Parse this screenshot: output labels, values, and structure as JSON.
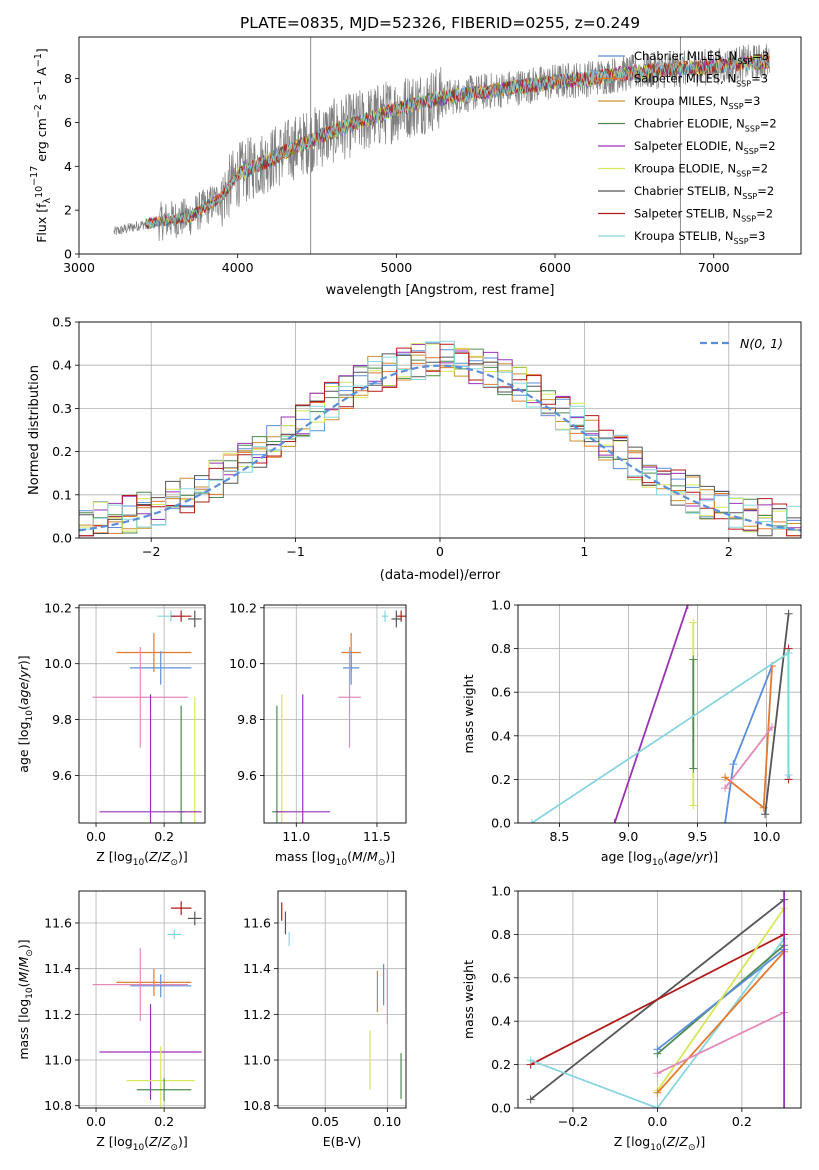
{
  "chart_data": [
    {
      "type": "line",
      "title": "PLATE=0835, MJD=52326, FIBERID=0255, z=0.249",
      "xlabel": "wavelength [Angstrom, rest frame]",
      "ylabel": "Flux [f_λ 10^-17 erg cm^-2 s^-1 A^-1]",
      "xlim": [
        3000,
        7550
      ],
      "ylim": [
        0,
        9.9
      ],
      "xticks": [
        3000,
        4000,
        5000,
        6000,
        7000
      ],
      "yticks": [
        0,
        2,
        4,
        6,
        8
      ],
      "legend_position": "right",
      "series": [
        {
          "name": "Chabrier MILES, N_SSP=3",
          "color": "#5b8fd9"
        },
        {
          "name": "Salpeter MILES, N_SSP=3",
          "color": "#e17a2c"
        },
        {
          "name": "Kroupa MILES, N_SSP=3",
          "color": "#c8912f"
        },
        {
          "name": "Chabrier ELODIE, N_SSP=2",
          "color": "#4f8a4f"
        },
        {
          "name": "Salpeter ELODIE, N_SSP=2",
          "color": "#9a32b8"
        },
        {
          "name": "Kroupa ELODIE, N_SSP=2",
          "color": "#d8e65a"
        },
        {
          "name": "Chabrier STELIB, N_SSP=2",
          "color": "#555555"
        },
        {
          "name": "Salpeter STELIB, N_SSP=2",
          "color": "#b01b1b"
        },
        {
          "name": "Kroupa STELIB, N_SSP=3",
          "color": "#88d5df"
        }
      ],
      "data_color": "#808080",
      "continuum_x": [
        3220,
        3400,
        3520,
        3700,
        3900,
        4000,
        4200,
        4400,
        4600,
        4800,
        5000,
        5200,
        5400,
        5600,
        5800,
        6000,
        6200,
        6400,
        6600,
        6800,
        7000,
        7200,
        7350
      ],
      "continuum_y": [
        1.0,
        1.35,
        1.5,
        1.7,
        2.6,
        3.6,
        4.3,
        5.0,
        5.6,
        6.1,
        6.6,
        7.0,
        7.25,
        7.45,
        7.65,
        7.85,
        8.0,
        8.2,
        8.35,
        8.45,
        8.55,
        8.7,
        8.8
      ],
      "spikes_x": [
        4460,
        6790
      ],
      "grid": false
    },
    {
      "type": "histogram",
      "xlabel": "(data-model)/error",
      "ylabel": "Normed distribution",
      "xlim": [
        -2.5,
        2.5
      ],
      "ylim": [
        0,
        0.5
      ],
      "xticks": [
        -2,
        -1,
        0,
        1,
        2
      ],
      "yticks": [
        0.0,
        0.1,
        0.2,
        0.3,
        0.4,
        0.5
      ],
      "reference": {
        "name": "N(0, 1)",
        "color": "#5b8fd9",
        "style": "dashed"
      },
      "legend_position": "top-right",
      "grid": true
    },
    {
      "type": "scatter",
      "xlabel": "Z [log10(Z/Z_sun)]",
      "ylabel": "age [log10(age/yr)]",
      "xlim": [
        -0.05,
        0.32
      ],
      "ylim": [
        9.43,
        10.21
      ],
      "xticks": [
        0.0,
        0.2
      ],
      "yticks": [
        9.6,
        9.8,
        10.0,
        10.2
      ],
      "grid": true,
      "points": [
        {
          "c": "#88d5df",
          "x": 0.22,
          "xe": 0.04,
          "y": 10.17,
          "ye": 0.02
        },
        {
          "c": "#b01b1b",
          "x": 0.25,
          "xe": 0.03,
          "y": 10.17,
          "ye": 0.02
        },
        {
          "c": "#555555",
          "x": 0.29,
          "xe": 0.02,
          "y": 10.16,
          "ye": 0.03
        },
        {
          "c": "#e17a2c",
          "x": 0.17,
          "xe": 0.11,
          "y": 10.04,
          "ye": 0.07
        },
        {
          "c": "#5b8fd9",
          "x": 0.19,
          "xe": 0.09,
          "y": 9.985,
          "ye": 0.06
        },
        {
          "c": "#e48ab9",
          "x": 0.13,
          "xe": 0.14,
          "y": 9.88,
          "ye": 0.18
        },
        {
          "c": "#4f8a4f",
          "x": 0.25,
          "xe": 0.01,
          "y": 9.47,
          "ye": 0.38
        },
        {
          "c": "#d8e65a",
          "x": 0.29,
          "xe": 0.02,
          "y": 9.47,
          "ye": 0.41
        },
        {
          "c": "#9a32b8",
          "x": 0.16,
          "xe": 0.15,
          "y": 9.47,
          "ye": 0.42
        }
      ]
    },
    {
      "type": "scatter",
      "xlabel": "mass [log10(M/M_sun)]",
      "xlim": [
        10.8,
        11.68
      ],
      "ylim": [
        9.43,
        10.21
      ],
      "xticks": [
        11.0,
        11.5
      ],
      "yticks": [
        9.6,
        9.8,
        10.0,
        10.2
      ],
      "grid": true,
      "points": [
        {
          "c": "#88d5df",
          "x": 11.55,
          "xe": 0.02,
          "y": 10.17,
          "ye": 0.02
        },
        {
          "c": "#b01b1b",
          "x": 11.65,
          "xe": 0.03,
          "y": 10.17,
          "ye": 0.02
        },
        {
          "c": "#555555",
          "x": 11.62,
          "xe": 0.03,
          "y": 10.16,
          "ye": 0.03
        },
        {
          "c": "#e17a2c",
          "x": 11.34,
          "xe": 0.06,
          "y": 10.04,
          "ye": 0.07
        },
        {
          "c": "#5b8fd9",
          "x": 11.34,
          "xe": 0.05,
          "y": 9.985,
          "ye": 0.06
        },
        {
          "c": "#e48ab9",
          "x": 11.33,
          "xe": 0.07,
          "y": 9.88,
          "ye": 0.18
        },
        {
          "c": "#4f8a4f",
          "x": 10.88,
          "xe": 0.03,
          "y": 9.47,
          "ye": 0.38
        },
        {
          "c": "#d8e65a",
          "x": 10.91,
          "xe": 0.02,
          "y": 9.47,
          "ye": 0.42
        },
        {
          "c": "#9a32b8",
          "x": 11.04,
          "xe": 0.17,
          "y": 9.47,
          "ye": 0.42
        }
      ]
    },
    {
      "type": "line",
      "xlabel": "age [log10(age/yr)]",
      "ylabel": "mass weight",
      "xlim": [
        8.2,
        10.25
      ],
      "ylim": [
        0,
        1
      ],
      "xticks": [
        8.5,
        9.0,
        9.5,
        10.0
      ],
      "yticks": [
        0.0,
        0.2,
        0.4,
        0.6,
        0.8,
        1.0
      ],
      "grid": true,
      "series": [
        {
          "c": "#5b8fd9",
          "x": [
            9.7,
            9.76,
            10.04
          ],
          "y": [
            0.0,
            0.27,
            0.72
          ]
        },
        {
          "c": "#e17a2c",
          "x": [
            9.7,
            9.98,
            10.04
          ],
          "y": [
            0.21,
            0.07,
            0.72
          ]
        },
        {
          "c": "#9a32b8",
          "x": [
            8.9,
            9.43
          ],
          "y": [
            0.0,
            1.0
          ]
        },
        {
          "c": "#d8e65a",
          "x": [
            9.47,
            9.47
          ],
          "y": [
            0.08,
            0.92
          ]
        },
        {
          "c": "#4f8a4f",
          "x": [
            9.47,
            9.47
          ],
          "y": [
            0.25,
            0.75
          ]
        },
        {
          "c": "#e48ab9",
          "x": [
            9.7,
            10.04
          ],
          "y": [
            0.16,
            0.44
          ]
        },
        {
          "c": "#555555",
          "x": [
            9.99,
            10.16
          ],
          "y": [
            0.04,
            0.96
          ]
        },
        {
          "c": "#b01b1b",
          "x": [
            10.16,
            10.16
          ],
          "y": [
            0.2,
            0.8
          ]
        },
        {
          "c": "#88d5df",
          "x": [
            8.3,
            10.16,
            10.16
          ],
          "y": [
            0.0,
            0.78,
            0.22
          ]
        }
      ]
    },
    {
      "type": "scatter",
      "xlabel": "Z [log10(Z/Z_sun)]",
      "ylabel": "mass [log10(M/M_sun)]",
      "xlim": [
        -0.05,
        0.32
      ],
      "ylim": [
        10.79,
        11.74
      ],
      "xticks": [
        0.0,
        0.2
      ],
      "yticks": [
        10.8,
        11.0,
        11.2,
        11.4,
        11.6
      ],
      "grid": true,
      "points": [
        {
          "c": "#b01b1b",
          "x": 0.25,
          "xe": 0.03,
          "y": 11.665,
          "ye": 0.03
        },
        {
          "c": "#555555",
          "x": 0.29,
          "xe": 0.02,
          "y": 11.62,
          "ye": 0.03
        },
        {
          "c": "#88d5df",
          "x": 0.23,
          "xe": 0.02,
          "y": 11.55,
          "ye": 0.02
        },
        {
          "c": "#e17a2c",
          "x": 0.17,
          "xe": 0.11,
          "y": 11.34,
          "ye": 0.06
        },
        {
          "c": "#5b8fd9",
          "x": 0.19,
          "xe": 0.09,
          "y": 11.325,
          "ye": 0.05
        },
        {
          "c": "#e48ab9",
          "x": 0.13,
          "xe": 0.14,
          "y": 11.33,
          "ye": 0.16
        },
        {
          "c": "#9a32b8",
          "x": 0.16,
          "xe": 0.15,
          "y": 11.035,
          "ye": 0.21
        },
        {
          "c": "#d8e65a",
          "x": 0.19,
          "xe": 0.1,
          "y": 10.91,
          "ye": 0.15
        },
        {
          "c": "#4f8a4f",
          "x": 0.2,
          "xe": 0.08,
          "y": 10.87,
          "ye": 0.05
        }
      ]
    },
    {
      "type": "scatter",
      "xlabel": "E(B-V)",
      "xlim": [
        0.012,
        0.115
      ],
      "ylim": [
        10.79,
        11.74
      ],
      "xticks": [
        0.05,
        0.1
      ],
      "yticks": [
        10.8,
        11.0,
        11.2,
        11.4,
        11.6
      ],
      "grid": true,
      "points": [
        {
          "c": "#b01b1b",
          "x": 0.015,
          "y": 11.65,
          "ye": 0.04
        },
        {
          "c": "#555555",
          "x": 0.018,
          "y": 11.6,
          "ye": 0.05
        },
        {
          "c": "#88d5df",
          "x": 0.021,
          "y": 11.53,
          "ye": 0.03
        },
        {
          "c": "#e17a2c",
          "x": 0.092,
          "y": 11.3,
          "ye": 0.09
        },
        {
          "c": "#5b8fd9",
          "x": 0.097,
          "y": 11.33,
          "ye": 0.09
        },
        {
          "c": "#e48ab9",
          "x": 0.1,
          "y": 11.28,
          "ye": 0.12
        },
        {
          "c": "#d8e65a",
          "x": 0.086,
          "y": 11.0,
          "ye": 0.13
        },
        {
          "c": "#4f8a4f",
          "x": 0.111,
          "y": 10.93,
          "ye": 0.1
        }
      ]
    },
    {
      "type": "line",
      "xlabel": "Z [log10(Z/Z_sun)]",
      "ylabel": "mass weight",
      "xlim": [
        -0.33,
        0.34
      ],
      "ylim": [
        0,
        1
      ],
      "xticks": [
        -0.2,
        0.0,
        0.2
      ],
      "yticks": [
        0.0,
        0.2,
        0.4,
        0.6,
        0.8,
        1.0
      ],
      "grid": true,
      "series": [
        {
          "c": "#555555",
          "x": [
            -0.3,
            0.3
          ],
          "y": [
            0.04,
            0.96
          ]
        },
        {
          "c": "#b01b1b",
          "x": [
            -0.3,
            0.3
          ],
          "y": [
            0.2,
            0.8
          ]
        },
        {
          "c": "#88d5df",
          "x": [
            -0.3,
            0.0,
            0.3
          ],
          "y": [
            0.22,
            0.0,
            0.78
          ]
        },
        {
          "c": "#4f8a4f",
          "x": [
            0.0,
            0.3
          ],
          "y": [
            0.25,
            0.75
          ]
        },
        {
          "c": "#5b8fd9",
          "x": [
            0.0,
            0.3
          ],
          "y": [
            0.27,
            0.73
          ]
        },
        {
          "c": "#d8e65a",
          "x": [
            0.0,
            0.3
          ],
          "y": [
            0.08,
            0.92
          ]
        },
        {
          "c": "#e17a2c",
          "x": [
            0.0,
            0.3
          ],
          "y": [
            0.07,
            0.72
          ]
        },
        {
          "c": "#e48ab9",
          "x": [
            0.0,
            0.3
          ],
          "y": [
            0.16,
            0.44
          ]
        },
        {
          "c": "#9a32b8",
          "x": [
            0.3,
            0.3
          ],
          "y": [
            0.0,
            1.0
          ]
        }
      ]
    }
  ]
}
